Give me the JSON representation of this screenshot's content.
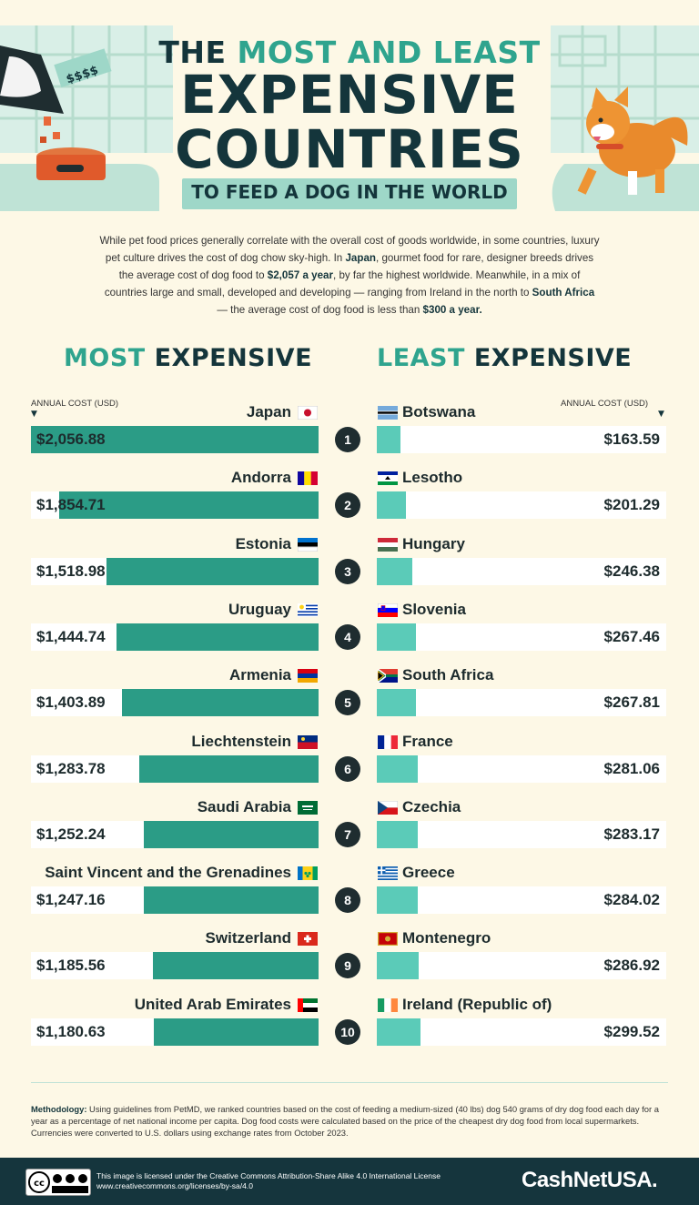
{
  "header": {
    "title_line1_pre": "THE ",
    "title_line1_accent": "MOST AND LEAST",
    "title_line2": "EXPENSIVE",
    "title_line3": "COUNTRIES",
    "subtitle": "TO FEED A DOG IN THE WORLD",
    "price_tag": "$$$$"
  },
  "intro": {
    "p1": "While pet food prices generally correlate with the overall cost of goods worldwide, in some countries, luxury pet culture drives the cost of dog chow sky-high. In ",
    "japan": "Japan",
    "p2": ", gourmet food for rare, designer breeds drives the average cost of dog food to ",
    "japan_cost": "$2,057 a year",
    "p3": ", by far the highest worldwide. Meanwhile, in a mix of countries large and small, developed and developing — ranging from Ireland in the north to ",
    "south_africa": "South Africa",
    "p4": " — the average cost of dog food is less than ",
    "threshold": "$300 a year."
  },
  "sections": {
    "most_accent": "MOST",
    "most_rest": " EXPENSIVE",
    "least_accent": "LEAST",
    "least_rest": " EXPENSIVE",
    "cost_label_left": "ANNUAL COST (USD)",
    "cost_label_right": "ANNUAL COST (USD)"
  },
  "chart_data": [
    {
      "type": "bar",
      "title": "MOST EXPENSIVE",
      "xlabel": "ANNUAL COST (USD)",
      "ranks": [
        1,
        2,
        3,
        4,
        5,
        6,
        7,
        8,
        9,
        10
      ],
      "categories": [
        "Japan",
        "Andorra",
        "Estonia",
        "Uruguay",
        "Armenia",
        "Liechtenstein",
        "Saudi Arabia",
        "Saint Vincent and the Grenadines",
        "Switzerland",
        "United Arab Emirates"
      ],
      "values": [
        2056.88,
        1854.71,
        1518.98,
        1444.74,
        1403.89,
        1283.78,
        1252.24,
        1247.16,
        1185.56,
        1180.63
      ],
      "labels": [
        "$2,056.88",
        "$1,854.71",
        "$1,518.98",
        "$1,444.74",
        "$1,403.89",
        "$1,283.78",
        "$1,252.24",
        "$1,247.16",
        "$1,185.56",
        "$1,180.63"
      ],
      "flags": [
        "japan-flag",
        "andorra-flag",
        "estonia-flag",
        "uruguay-flag",
        "armenia-flag",
        "liechtenstein-flag",
        "saudi-arabia-flag",
        "saint-vincent-flag",
        "switzerland-flag",
        "uae-flag"
      ],
      "color": "#2b9c86",
      "orientation": "horizontal"
    },
    {
      "type": "bar",
      "title": "LEAST EXPENSIVE",
      "xlabel": "ANNUAL COST (USD)",
      "ranks": [
        1,
        2,
        3,
        4,
        5,
        6,
        7,
        8,
        9,
        10
      ],
      "categories": [
        "Botswana",
        "Lesotho",
        "Hungary",
        "Slovenia",
        "South Africa",
        "France",
        "Czechia",
        "Greece",
        "Montenegro",
        "Ireland (Republic of)"
      ],
      "values": [
        163.59,
        201.29,
        246.38,
        267.46,
        267.81,
        281.06,
        283.17,
        284.02,
        286.92,
        299.52
      ],
      "labels": [
        "$163.59",
        "$201.29",
        "$246.38",
        "$267.46",
        "$267.81",
        "$281.06",
        "$283.17",
        "$284.02",
        "$286.92",
        "$299.52"
      ],
      "flags": [
        "botswana-flag",
        "lesotho-flag",
        "hungary-flag",
        "slovenia-flag",
        "south-africa-flag",
        "france-flag",
        "czechia-flag",
        "greece-flag",
        "montenegro-flag",
        "ireland-flag"
      ],
      "color": "#5bcbb8",
      "orientation": "horizontal"
    }
  ],
  "methodology": {
    "label": "Methodology:",
    "text": " Using guidelines from PetMD, we ranked countries based on the cost of feeding a medium-sized (40 lbs) dog 540 grams of dry dog food each day for a year as a percentage of net national income per capita. Dog food costs were calculated based on the price of the cheapest dry dog food from local supermarkets. Currencies were converted to U.S. dollars using exchange rates from October 2023."
  },
  "footer": {
    "license_line1": "This image is licensed under the Creative Commons Attribution-Share Alike 4.0 International License",
    "license_line2": "www.creativecommons.org/licenses/by-sa/4.0",
    "brand": "CashNetUSA.",
    "cc_badge": "cc BY NC SA"
  },
  "colors": {
    "background": "#fdf8e6",
    "dark": "#14353b",
    "accent": "#2fa48e",
    "bar_most": "#2b9c86",
    "bar_least": "#5bcbb8",
    "footer": "#15353d"
  }
}
